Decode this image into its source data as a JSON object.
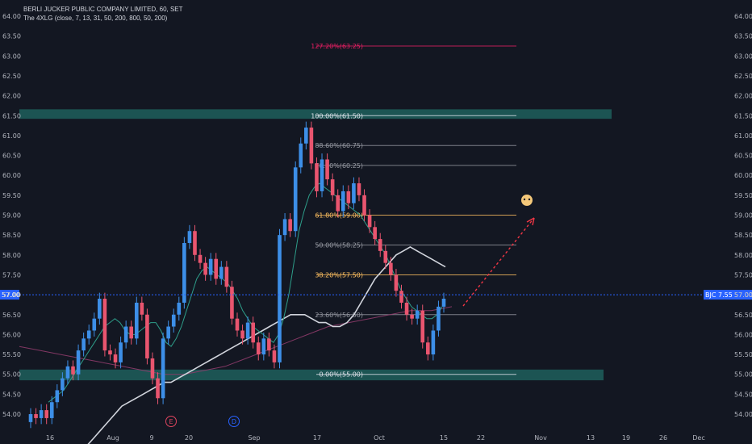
{
  "legend": {
    "title": "BERLI JUCKER PUBLIC COMPANY LIMITED, 60, SET",
    "indicator": "The 4XLG (close, 7, 13, 31, 50, 200, 800, 50, 200)"
  },
  "y_ticks": [
    "54.00",
    "54.50",
    "55.00",
    "55.50",
    "56.00",
    "56.50",
    "57.00",
    "57.50",
    "58.00",
    "58.50",
    "59.00",
    "59.50",
    "60.00",
    "60.50",
    "61.00",
    "61.50",
    "62.00",
    "62.50",
    "63.00",
    "63.50",
    "64.00"
  ],
  "x_ticks": [
    "16",
    "Aug",
    "9",
    "20",
    "Sep",
    "17",
    "Oct",
    "15",
    "22",
    "Nov",
    "13",
    "19",
    "26",
    "Dec"
  ],
  "price_line": {
    "label": "57.00",
    "tag": "BJC 7.55%"
  },
  "fib_levels": [
    {
      "label": "127.20%(63.25)",
      "value": 63.25,
      "color": "#e91e63"
    },
    {
      "label": "100.00%(61.50)",
      "value": 61.5,
      "color": "#e0e3eb"
    },
    {
      "label": "88.60%(60.75)",
      "value": 60.75,
      "color": "#9598a1"
    },
    {
      "label": "78.60%(60.25)",
      "value": 60.25,
      "color": "#9598a1"
    },
    {
      "label": "61.80%(59.00)",
      "value": 59.0,
      "color": "#ffc060"
    },
    {
      "label": "50.00%(58.25)",
      "value": 58.25,
      "color": "#9598a1"
    },
    {
      "label": "38.20%(57.50)",
      "value": 57.5,
      "color": "#ffc060"
    },
    {
      "label": "23.60%(56.50)",
      "value": 56.5,
      "color": "#9598a1"
    },
    {
      "label": "0.00%(55.00)",
      "value": 55.0,
      "color": "#e0e3eb"
    }
  ],
  "zones": [
    {
      "name": "resistance-zone",
      "from": 61.42,
      "to": 61.66
    },
    {
      "name": "support-zone",
      "from": 54.85,
      "to": 55.12
    }
  ],
  "markers": [
    {
      "name": "earnings-marker",
      "letter": "E",
      "color": "#e0455f"
    },
    {
      "name": "dividend-marker",
      "letter": "D",
      "color": "#2962ff"
    }
  ],
  "colors": {
    "background": "#131722",
    "bull": "#3d8fe8",
    "bear": "#e9556f",
    "zone": "#1f5f5c",
    "price_tag": "#2962ff",
    "arrow": "#f23645"
  },
  "chart_data": {
    "type": "candlestick",
    "ylim": [
      53.8,
      64.1
    ],
    "closes": [
      54.0,
      53.9,
      54.1,
      53.9,
      54.3,
      54.6,
      54.9,
      55.2,
      55.0,
      55.6,
      55.9,
      56.1,
      56.4,
      56.9,
      55.6,
      55.5,
      55.3,
      55.8,
      56.2,
      55.9,
      56.8,
      56.5,
      55.4,
      54.9,
      54.4,
      55.9,
      56.2,
      56.5,
      56.8,
      58.3,
      58.6,
      58.0,
      57.8,
      57.5,
      57.9,
      57.4,
      57.7,
      57.2,
      56.4,
      56.1,
      55.9,
      56.3,
      55.8,
      55.5,
      55.9,
      55.6,
      55.3,
      58.5,
      58.9,
      58.6,
      60.2,
      60.8,
      61.2,
      60.3,
      59.6,
      60.4,
      59.9,
      59.5,
      59.1,
      59.6,
      59.3,
      59.8,
      59.5,
      59.0,
      58.7,
      58.4,
      58.1,
      57.8,
      57.5,
      57.1,
      56.8,
      56.5,
      56.4,
      56.6,
      55.8,
      55.5,
      56.1,
      56.7,
      56.9
    ],
    "ma_fast": [
      54.3,
      54.4,
      54.5,
      54.6,
      54.8,
      55.0,
      55.2,
      55.4,
      55.6,
      55.8,
      56.0,
      56.2,
      56.3,
      56.4,
      56.3,
      56.1,
      56.0,
      56.0,
      56.1,
      56.2,
      56.3,
      56.3,
      56.1,
      55.8,
      55.7,
      55.9,
      56.2,
      56.6,
      57.0,
      57.4,
      57.6,
      57.7,
      57.6,
      57.5,
      57.4,
      57.3,
      57.1,
      56.9,
      56.6,
      56.4,
      56.2,
      56.1,
      56.0,
      55.9,
      55.8,
      56.0,
      56.4,
      57.0,
      57.8,
      58.6,
      59.1,
      59.5,
      59.7,
      59.8,
      59.7,
      59.6,
      59.5,
      59.4,
      59.3,
      59.2,
      59.1,
      59.0,
      58.8,
      58.6,
      58.4,
      58.2,
      58.0,
      57.7,
      57.4,
      57.1,
      56.9,
      56.7,
      56.6,
      56.5,
      56.4,
      56.4,
      56.5,
      56.7
    ],
    "ma_slow": [
      52.8,
      53.0,
      53.2,
      53.4,
      53.6,
      53.8,
      54.0,
      54.2,
      54.3,
      54.4,
      54.5,
      54.6,
      54.7,
      54.8,
      54.8,
      54.9,
      55.0,
      55.1,
      55.2,
      55.3,
      55.4,
      55.5,
      55.6,
      55.7,
      55.8,
      55.9,
      56.0,
      56.1,
      56.2,
      56.3,
      56.4,
      56.5,
      56.5,
      56.5,
      56.4,
      56.3,
      56.3,
      56.2,
      56.2,
      56.3,
      56.5,
      56.8,
      57.1,
      57.4,
      57.6,
      57.8,
      58.0,
      58.1,
      58.2,
      58.1,
      58.0,
      57.9,
      57.8,
      57.7
    ],
    "ma_long": [
      55.7,
      55.6,
      55.5,
      55.4,
      55.3,
      55.2,
      55.1,
      55.0,
      55.0,
      55.1,
      55.2,
      55.4,
      55.6,
      55.8,
      56.0,
      56.2,
      56.3,
      56.4,
      56.5,
      56.6,
      56.6,
      56.7
    ]
  }
}
